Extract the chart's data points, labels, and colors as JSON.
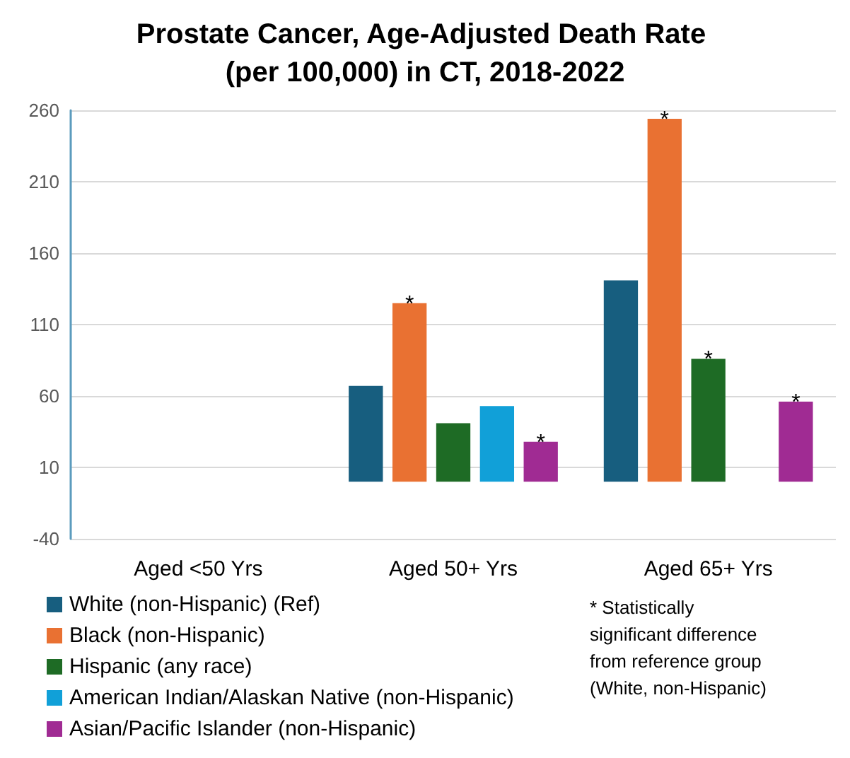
{
  "chart_data": {
    "type": "bar",
    "title": "Prostate Cancer, Age-Adjusted Death Rate (per 100,000) in CT, 2018-2022",
    "categories": [
      "Aged <50 Yrs",
      "Aged 50+ Yrs",
      "Aged 65+ Yrs"
    ],
    "series": [
      {
        "name": "White (non-Hispanic) (Ref)",
        "color": "#175e7f",
        "values": [
          null,
          67,
          141
        ]
      },
      {
        "name": "Black (non-Hispanic)",
        "color": "#e97132",
        "values": [
          null,
          125,
          254
        ],
        "value_labels": [
          null,
          "*",
          "*"
        ]
      },
      {
        "name": "Hispanic (any race)",
        "color": "#1e6b25",
        "values": [
          null,
          41,
          86
        ],
        "value_labels": [
          null,
          null,
          "*"
        ]
      },
      {
        "name": "American Indian/Alaskan Native (non-Hispanic)",
        "color": "#11a0d8",
        "values": [
          null,
          53,
          null
        ]
      },
      {
        "name": "Asian/Pacific Islander (non-Hispanic)",
        "color": "#a02b93",
        "values": [
          null,
          28,
          56
        ],
        "value_labels": [
          null,
          "*",
          "*"
        ]
      }
    ],
    "ylim": [
      -40,
      260
    ],
    "yticks": [
      -40,
      10,
      60,
      110,
      160,
      210,
      260
    ],
    "grid": "y",
    "legend": "bottom left",
    "annotations": [
      "* Statistically significant difference from reference group (White, non-Hispanic)"
    ]
  }
}
